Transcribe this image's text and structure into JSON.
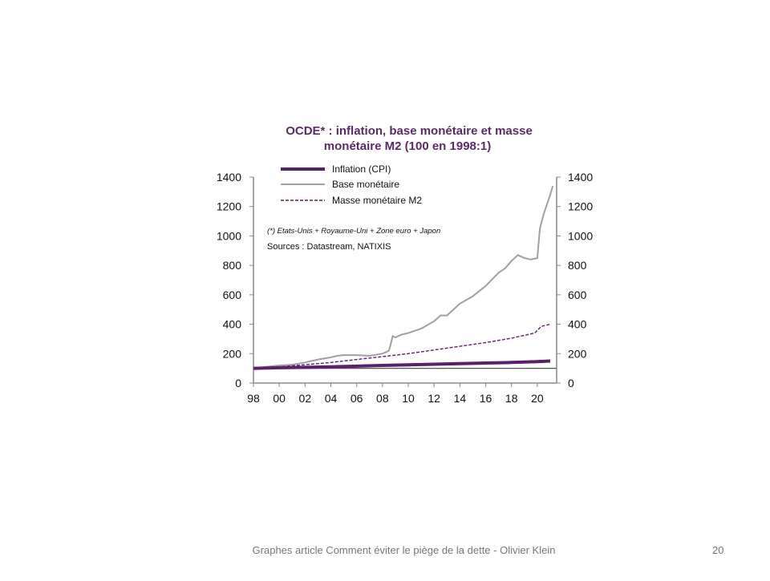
{
  "footer": {
    "caption": "Graphes article Comment  éviter le piège de la dette - Olivier Klein",
    "page_number": "20"
  },
  "colors": {
    "inflation": "#5b1f6e",
    "base_monetaire": "#a0a0a0",
    "masse_m2": "#5b1f6e",
    "title": "#5b2a6e",
    "axis": "#888888"
  },
  "chart_data": {
    "type": "line",
    "title_line1": "OCDE*  : inflation, base monétaire et masse",
    "title_line2": "monétaire M2 (100 en 1998:1)",
    "note": "(*) Etats-Unis + Royaume-Uni + Zone euro + Japon",
    "source": "Sources  : Datastream,  NATIXIS",
    "xlabel": "",
    "ylabel": "",
    "x_tick_labels": [
      "98",
      "00",
      "02",
      "04",
      "06",
      "08",
      "10",
      "12",
      "14",
      "16",
      "18",
      "20"
    ],
    "x_tick_years": [
      1998,
      2000,
      2002,
      2004,
      2006,
      2008,
      2010,
      2012,
      2014,
      2016,
      2018,
      2020
    ],
    "xlim": [
      1998,
      2021.5
    ],
    "ylim": [
      0,
      1400
    ],
    "y_ticks": [
      0,
      200,
      400,
      600,
      800,
      1000,
      1200,
      1400
    ],
    "y_tick_labels": [
      "0",
      "200",
      "400",
      "600",
      "800",
      "1000",
      "1200",
      "1400"
    ],
    "reference_line": 100,
    "legend_position": "top-left",
    "series": [
      {
        "name": "Inflation (CPI)",
        "style": "solid-thick",
        "x": [
          1998,
          2000,
          2002,
          2004,
          2006,
          2008,
          2010,
          2012,
          2014,
          2016,
          2018,
          2020,
          2021
        ],
        "y": [
          100,
          104,
          107,
          110,
          115,
          120,
          124,
          128,
          132,
          136,
          140,
          146,
          150
        ]
      },
      {
        "name": "Base monétaire",
        "style": "solid-grey",
        "x": [
          1998,
          1999,
          2000,
          2001,
          2002,
          2003,
          2004,
          2004.5,
          2005,
          2006,
          2007,
          2008,
          2008.5,
          2008.8,
          2009,
          2009.5,
          2010,
          2011,
          2012,
          2012.5,
          2013,
          2014,
          2015,
          2016,
          2017,
          2017.5,
          2018,
          2018.5,
          2019,
          2019.5,
          2020,
          2020.2,
          2020.5,
          2021,
          2021.2
        ],
        "y": [
          100,
          110,
          120,
          125,
          140,
          160,
          175,
          185,
          190,
          190,
          185,
          200,
          220,
          320,
          310,
          330,
          340,
          370,
          420,
          460,
          460,
          540,
          590,
          660,
          750,
          780,
          830,
          870,
          850,
          840,
          850,
          1050,
          1150,
          1280,
          1340
        ]
      },
      {
        "name": "Masse monétaire M2",
        "style": "dashed",
        "x": [
          1998,
          2000,
          2002,
          2004,
          2006,
          2008,
          2010,
          2012,
          2014,
          2016,
          2018,
          2019.8,
          2020.3,
          2021
        ],
        "y": [
          100,
          110,
          125,
          140,
          160,
          180,
          200,
          225,
          250,
          275,
          305,
          340,
          385,
          400
        ]
      }
    ]
  }
}
